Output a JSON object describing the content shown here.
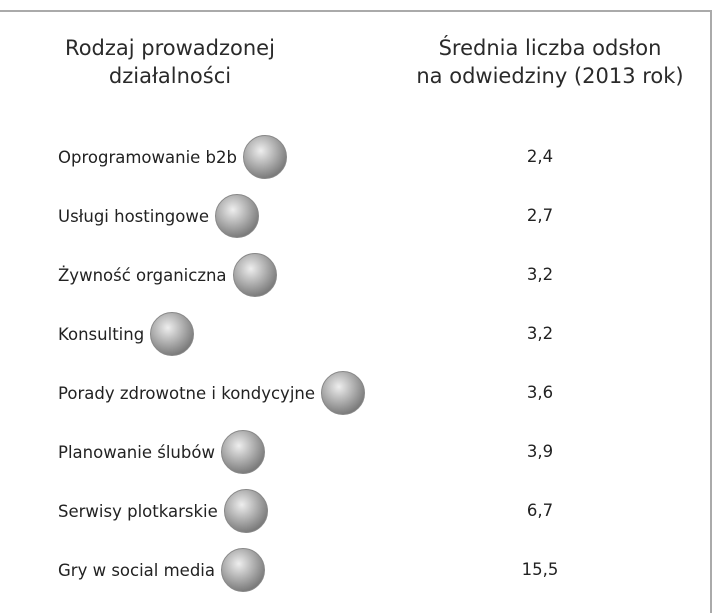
{
  "headers": [
    [
      "Rodzaj prowadzonej",
      "działalności"
    ],
    [
      "Średnia liczba odsłon",
      "na odwiedziny (2013 rok)"
    ]
  ],
  "rows": [
    {
      "label": "Oprogramowanie b2b",
      "value": "2,4"
    },
    {
      "label": "Usługi hostingowe",
      "value": "2,7"
    },
    {
      "label": "Żywność organiczna",
      "value": "3,2"
    },
    {
      "label": "Konsulting",
      "value": "3,2"
    },
    {
      "label": "Porady zdrowotne i kondycyjne",
      "value": "3,6"
    },
    {
      "label": "Planowanie ślubów",
      "value": "3,9"
    },
    {
      "label": "Serwisy plotkarskie",
      "value": "6,7"
    },
    {
      "label": "Gry w social media",
      "value": "15,5"
    }
  ]
}
